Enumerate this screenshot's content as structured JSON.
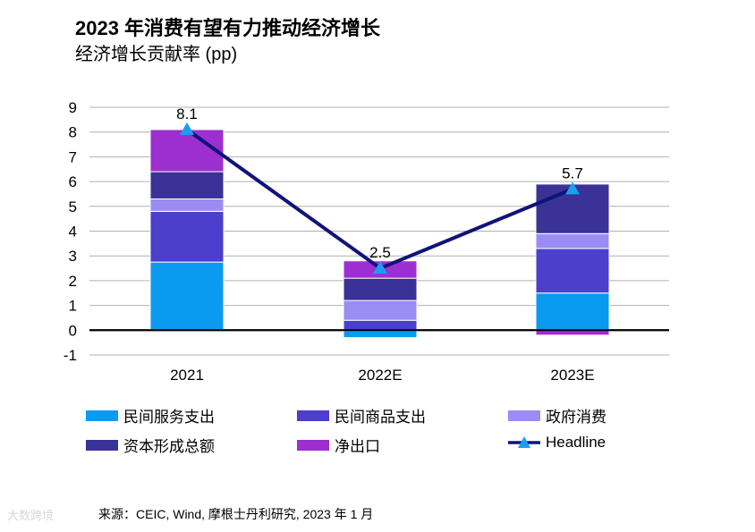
{
  "header": {
    "title": "2023 年消费有望有力推动经济增长",
    "subtitle": "经济增长贡献率 (pp)"
  },
  "chart_data": {
    "type": "bar",
    "stacked": true,
    "categories": [
      "2021",
      "2022E",
      "2023E"
    ],
    "ylim": [
      -1,
      9
    ],
    "yticks": [
      -1,
      0,
      1,
      2,
      3,
      4,
      5,
      6,
      7,
      8,
      9
    ],
    "grid": true,
    "series": [
      {
        "name": "民间服务支出",
        "color": "#0a9af0",
        "values": [
          2.75,
          -0.3,
          1.5
        ]
      },
      {
        "name": "民间商品支出",
        "color": "#4b3fcc",
        "values": [
          2.05,
          0.4,
          1.8
        ]
      },
      {
        "name": "政府消费",
        "color": "#9b8cf4",
        "values": [
          0.5,
          0.8,
          0.6
        ]
      },
      {
        "name": "资本形成总额",
        "color": "#3a3296",
        "values": [
          1.1,
          0.9,
          2.0
        ]
      },
      {
        "name": "净出口",
        "color": "#9d2ecf",
        "values": [
          1.7,
          0.7,
          -0.2
        ]
      }
    ],
    "line": {
      "name": "Headline",
      "color": "#10137a",
      "marker_color": "#1a9ef2",
      "values": [
        8.1,
        2.5,
        5.7
      ]
    },
    "data_labels": [
      "8.1",
      "2.5",
      "5.7"
    ]
  },
  "footer": {
    "source": "来源：CEIC, Wind, 摩根士丹利研究, 2023 年 1 月",
    "watermark": "大数跨境"
  }
}
